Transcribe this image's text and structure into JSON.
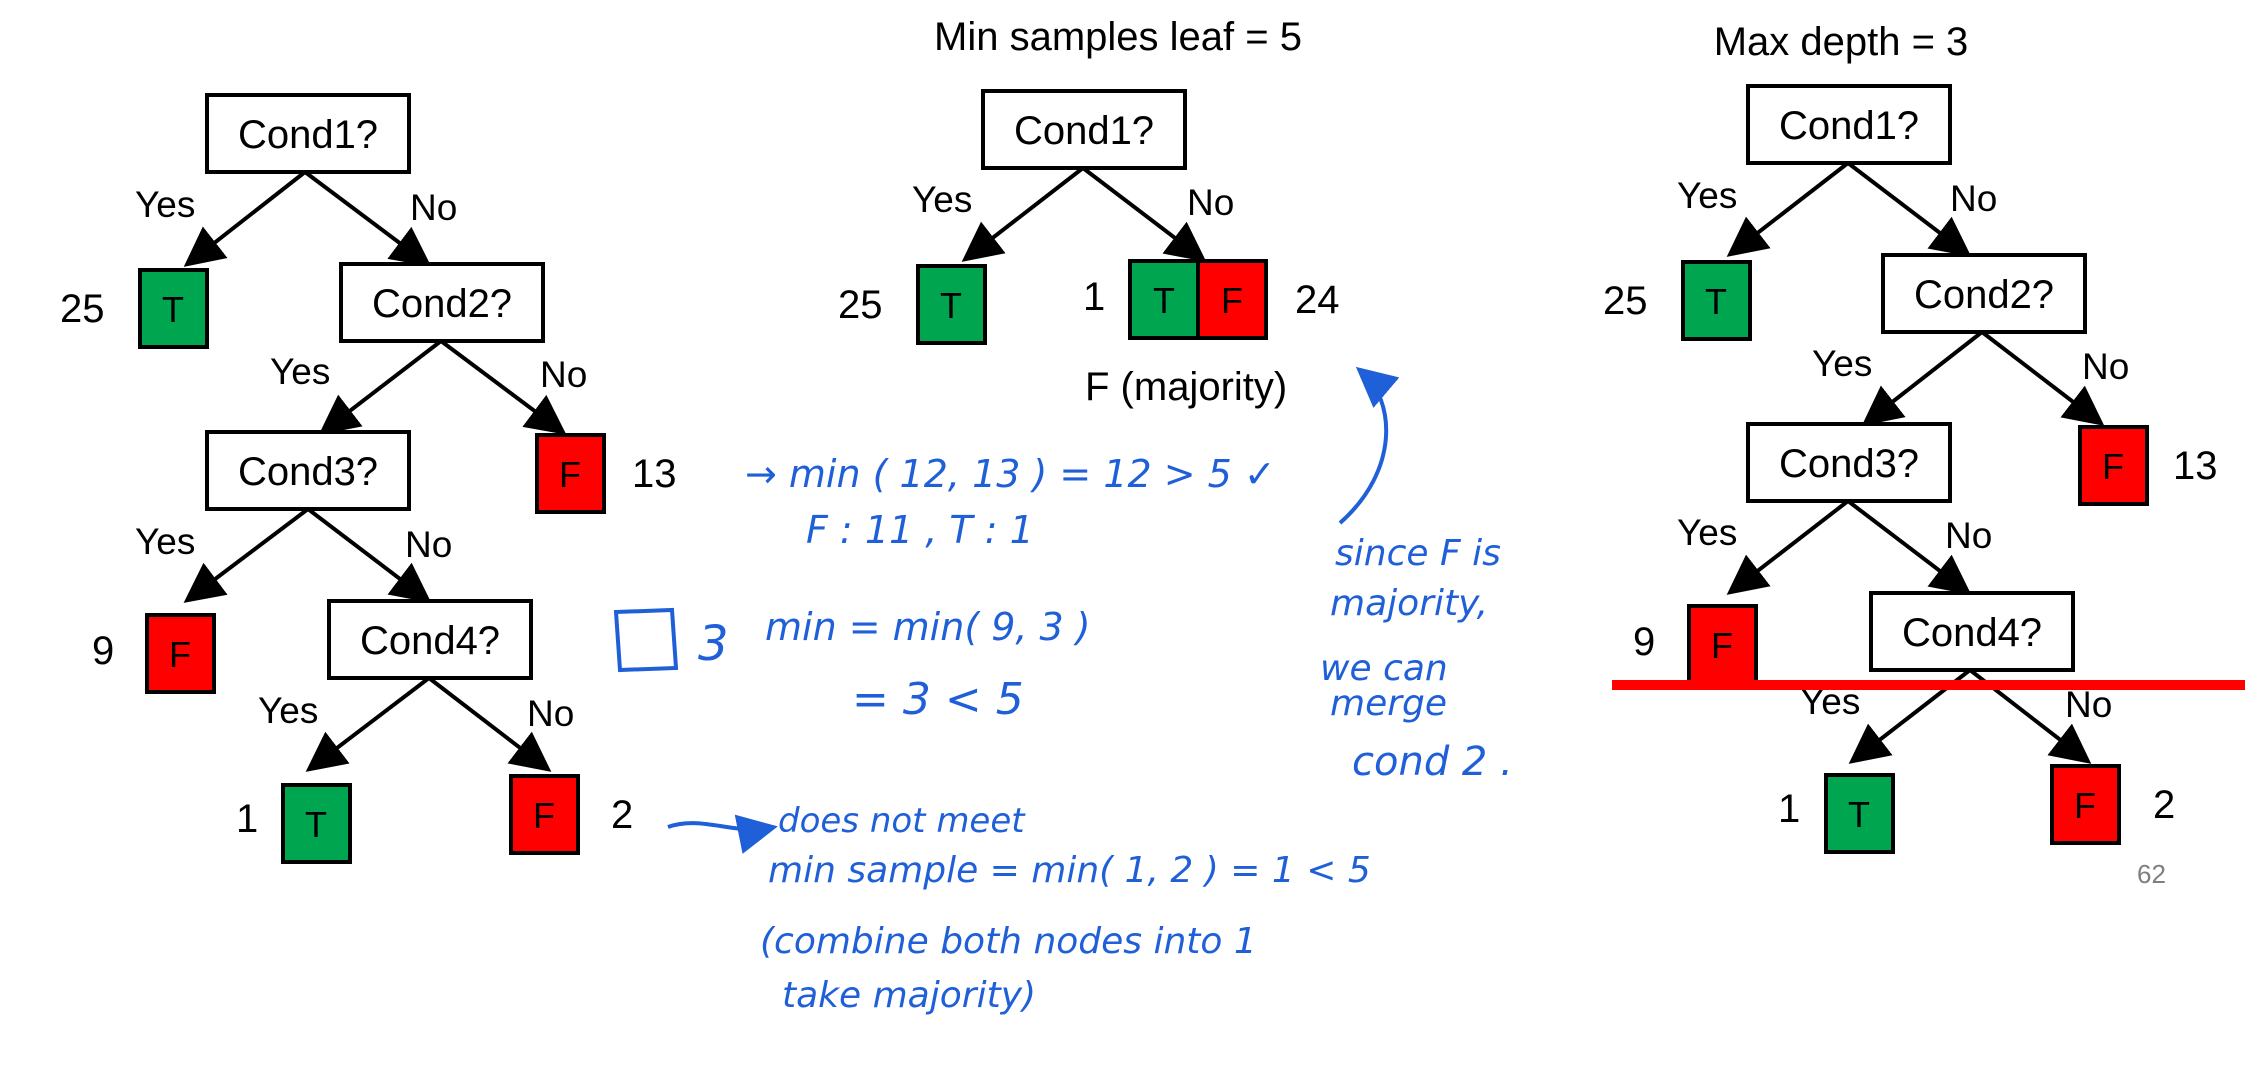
{
  "titles": {
    "middle": "Min samples leaf = 5",
    "right": "Max depth = 3"
  },
  "labels": {
    "yes": "Yes",
    "no": "No"
  },
  "conditions": {
    "c1": "Cond1?",
    "c2": "Cond2?",
    "c3": "Cond3?",
    "c4": "Cond4?"
  },
  "leaf_labels": {
    "true": "T",
    "false": "F"
  },
  "counts": {
    "left_t25": "25",
    "left_f13": "13",
    "left_f9": "9",
    "left_t1": "1",
    "left_f2": "2",
    "mid_t25": "25",
    "mid_t1": "1",
    "mid_f24": "24",
    "right_t25": "25",
    "right_f13": "13",
    "right_f9": "9",
    "right_t1": "1",
    "right_f2": "2"
  },
  "majority_note": "F (majority)",
  "annotations": {
    "line1": "→ min ( 12, 13 ) = 12 > 5 ✓",
    "line2": "F : 11 ,  T : 1",
    "line3_box_count": "3",
    "line3": "min = min( 9, 3 )",
    "line4": "= 3 < 5",
    "side1": "since F is",
    "side2": "majority,",
    "side3": "we can",
    "side4": "merge",
    "side5": "cond 2 .",
    "bottom1": "does not meet",
    "bottom2": "min sample = min( 1, 2 ) = 1 < 5",
    "bottom3": "(combine both nodes into 1",
    "bottom4": "take  majority)"
  },
  "slide_number": "62",
  "colors": {
    "true_leaf": "#00a550",
    "false_leaf": "#ff0000",
    "ink": "#1f5fd8",
    "cut_line": "#ff0000",
    "border": "#000000"
  }
}
